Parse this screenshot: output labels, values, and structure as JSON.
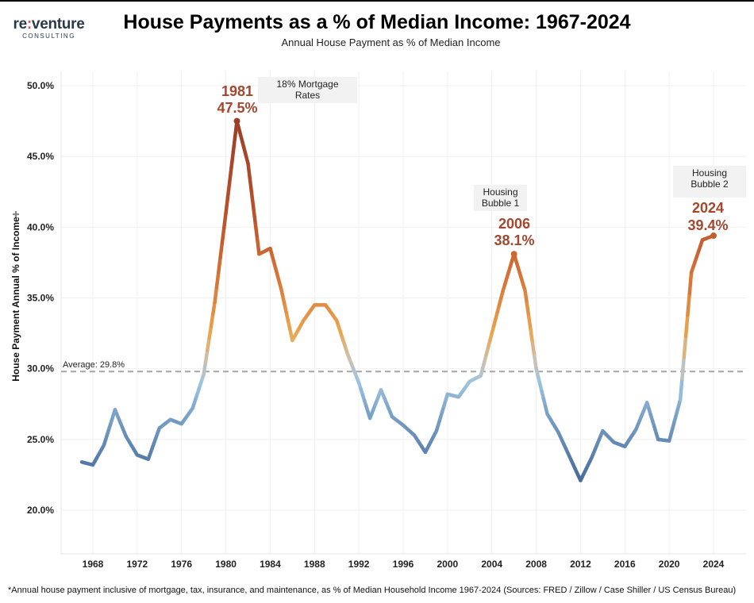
{
  "logo": {
    "text_a": "re",
    "text_colon": ":",
    "text_b": "venture",
    "text_sub": "CONSULTING"
  },
  "title": "House Payments as a % of Median Income: 1967-2024",
  "subtitle": "Annual House Payment as % of Median Income",
  "footnote": "*Annual house payment inclusive of mortgage, tax, insurance, and maintenance, as % of Median Household Income 1967-2024 (Sources: FRED / Zillow / Case Shiller / US Census Bureau)",
  "colors": {
    "low": "#46699a",
    "mid_low": "#9cc3df",
    "neutral": "#c9c3b5",
    "mid_high": "#eaa650",
    "high": "#d9783a",
    "peak": "#9c3f28",
    "label": "#a4472e"
  },
  "chart_data": {
    "type": "line",
    "title": "House Payments as a % of Median Income: 1967-2024",
    "xlabel": "",
    "ylabel": "House Payment Annual % of Income",
    "ylim": [
      17.0,
      51.5
    ],
    "xlim": [
      1966,
      2026.5
    ],
    "yticks": [
      20,
      25,
      30,
      35,
      40,
      45,
      50
    ],
    "ytick_labels": [
      "20.0%",
      "25.0%",
      "30.0%",
      "35.0%",
      "40.0%",
      "45.0%",
      "50.0%"
    ],
    "xticks": [
      1968,
      1972,
      1976,
      1980,
      1984,
      1988,
      1992,
      1996,
      2000,
      2004,
      2008,
      2012,
      2016,
      2020,
      2024
    ],
    "xtick_labels": [
      "1968",
      "1972",
      "1976",
      "1980",
      "1984",
      "1988",
      "1992",
      "1996",
      "2000",
      "2004",
      "2008",
      "2012",
      "2016",
      "2020",
      "2024"
    ],
    "x": [
      1967,
      1968,
      1969,
      1970,
      1971,
      1972,
      1973,
      1974,
      1975,
      1976,
      1977,
      1978,
      1979,
      1980,
      1981,
      1982,
      1983,
      1984,
      1985,
      1986,
      1987,
      1988,
      1989,
      1990,
      1991,
      1992,
      1993,
      1994,
      1995,
      1996,
      1997,
      1998,
      1999,
      2000,
      2001,
      2002,
      2003,
      2004,
      2005,
      2006,
      2007,
      2008,
      2009,
      2010,
      2011,
      2012,
      2013,
      2014,
      2015,
      2016,
      2017,
      2018,
      2019,
      2020,
      2021,
      2022,
      2023,
      2024
    ],
    "values": [
      23.4,
      23.2,
      24.6,
      27.1,
      25.2,
      23.9,
      23.6,
      25.8,
      26.4,
      26.1,
      27.2,
      29.6,
      34.7,
      41.0,
      47.5,
      44.5,
      38.1,
      38.5,
      35.6,
      32.0,
      33.4,
      34.5,
      34.5,
      33.4,
      31.0,
      29.0,
      26.5,
      28.5,
      26.6,
      26.0,
      25.3,
      24.1,
      25.6,
      28.2,
      28.0,
      29.1,
      29.5,
      32.5,
      35.5,
      38.1,
      35.5,
      30.0,
      26.8,
      25.5,
      23.8,
      22.1,
      23.7,
      25.6,
      24.8,
      24.5,
      25.7,
      27.6,
      25.0,
      24.9,
      27.8,
      36.8,
      39.1,
      39.4
    ],
    "reference_line": {
      "value": 29.8,
      "label": "Average: 29.8%"
    },
    "annotations": [
      {
        "x": 1981,
        "year_label": "1981",
        "value_label": "47.5%",
        "note": "18% Mortgage\nRates",
        "note_line1": "18% Mortgage",
        "note_line2": "Rates"
      },
      {
        "x": 2006,
        "year_label": "2006",
        "value_label": "38.1%",
        "note_line1": "Housing",
        "note_line2": "Bubble 1"
      },
      {
        "x": 2024,
        "year_label": "2024",
        "value_label": "39.4%",
        "note_line1": "Housing",
        "note_line2": "Bubble 2"
      }
    ],
    "grid": true,
    "legend": "none"
  }
}
